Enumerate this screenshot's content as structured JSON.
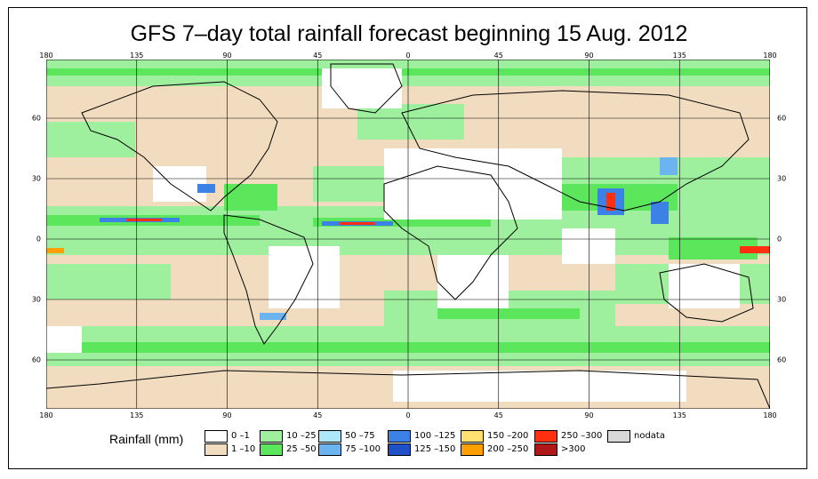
{
  "title": "GFS 7–day total rainfall forecast beginning 15 Aug. 2012",
  "lon_ticks": [
    "180",
    "135",
    "90",
    "45",
    "0",
    "45",
    "90",
    "135",
    "180"
  ],
  "lat_ticks": [
    "60",
    "30",
    "0",
    "30",
    "60"
  ],
  "legend": {
    "title": "Rainfall (mm)",
    "bins": [
      {
        "label": "0 –1",
        "color": "#ffffff"
      },
      {
        "label": "1 –10",
        "color": "#f2dcbf"
      },
      {
        "label": "10 –25",
        "color": "#9ef09e"
      },
      {
        "label": "25 –50",
        "color": "#5ce65c"
      },
      {
        "label": "50 –75",
        "color": "#aee8f8"
      },
      {
        "label": "75 –100",
        "color": "#6cb4f0"
      },
      {
        "label": "100 –125",
        "color": "#3c82e6"
      },
      {
        "label": "125 –150",
        "color": "#1e50c8"
      },
      {
        "label": "150 –200",
        "color": "#ffe070"
      },
      {
        "label": "200 –250",
        "color": "#ffa000"
      },
      {
        "label": "250 –300",
        "color": "#ff3010"
      },
      {
        "label": ">300",
        "color": "#b01818"
      },
      {
        "label": "nodata",
        "color": "#d8d8d8"
      }
    ]
  }
}
